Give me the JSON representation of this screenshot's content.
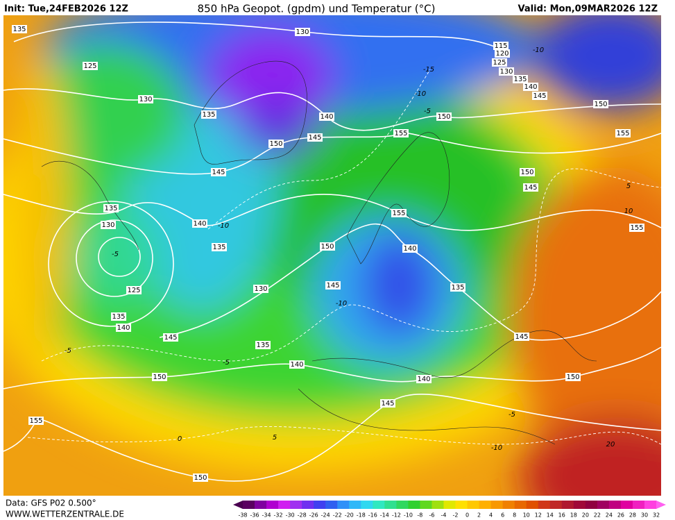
{
  "header": {
    "init": "Init: Tue,24FEB2026 12Z",
    "title": "850 hPa Geopot. (gpdm) und Temperatur (°C)",
    "valid": "Valid: Mon,09MAR2026 12Z"
  },
  "footer": {
    "source": "Data: GFS P02 0.500°",
    "site": "WWW.WETTERZENTRALE.DE"
  },
  "colorbar": {
    "labels": [
      -38,
      -36,
      -34,
      -32,
      -30,
      -28,
      -26,
      -24,
      -22,
      -20,
      -18,
      -16,
      -14,
      -12,
      -10,
      -8,
      -6,
      -4,
      -2,
      0,
      2,
      4,
      6,
      8,
      10,
      12,
      14,
      16,
      18,
      20,
      22,
      24,
      26,
      28,
      30,
      32
    ]
  },
  "geopotential_labels": [
    "135",
    "130",
    "115",
    "120",
    "125",
    "130",
    "135",
    "140",
    "145",
    "150",
    "125",
    "130",
    "135",
    "140",
    "150",
    "145",
    "155",
    "150",
    "155",
    "145",
    "150",
    "145",
    "135",
    "130",
    "140",
    "155",
    "155",
    "135",
    "150",
    "140",
    "125",
    "130",
    "145",
    "135",
    "135",
    "140",
    "145",
    "145",
    "135",
    "140",
    "150",
    "140",
    "150",
    "145",
    "155",
    "150"
  ],
  "temperature_labels": [
    "-10",
    "-15",
    "-10",
    "-5",
    "-10",
    "-10",
    "-5",
    "-5",
    "-5",
    "-10",
    "-5",
    "5",
    "10",
    "0",
    "5",
    "20"
  ]
}
